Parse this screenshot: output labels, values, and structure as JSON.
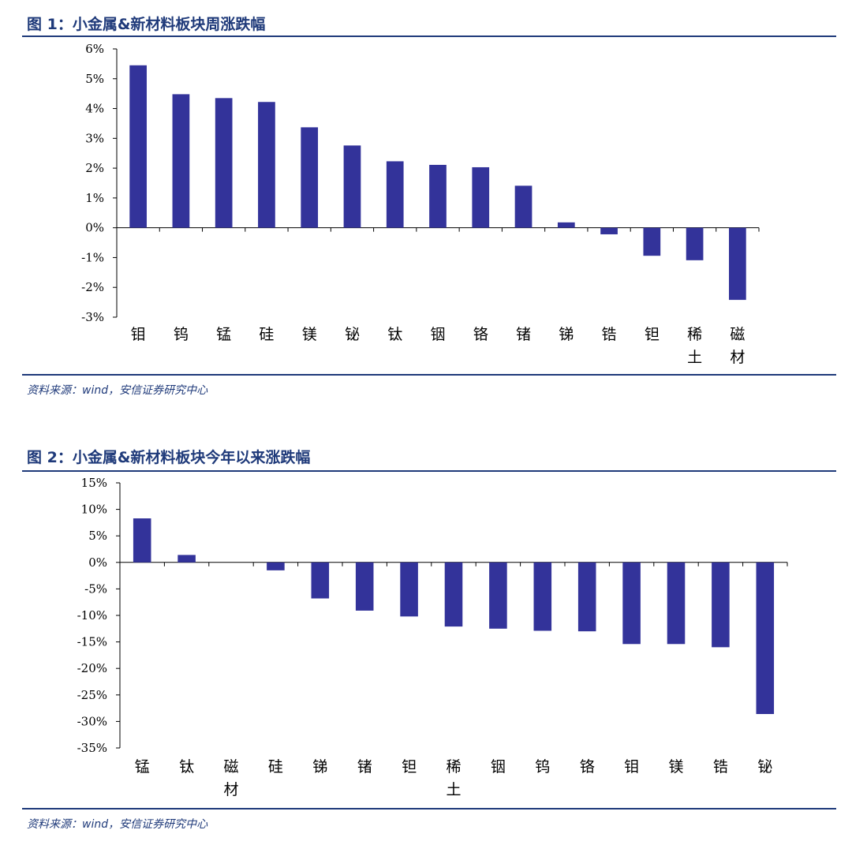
{
  "figures": [
    {
      "title": "图 1：小金属&新材料板块周涨跌幅",
      "source": "资料来源：wind，安信证券研究中心",
      "chart_data": {
        "type": "bar",
        "title": "图 1：小金属&新材料板块周涨跌幅",
        "categories": [
          "钼",
          "钨",
          "锰",
          "硅",
          "镁",
          "铋",
          "钛",
          "铟",
          "铬",
          "锗",
          "锑",
          "锆",
          "钽",
          "稀土",
          "磁材"
        ],
        "values": [
          5.45,
          4.48,
          4.35,
          4.22,
          3.37,
          2.76,
          2.23,
          2.11,
          2.03,
          1.41,
          0.18,
          -0.22,
          -0.94,
          -1.09,
          -2.42
        ],
        "unit": "%",
        "ylim": [
          -3,
          6
        ],
        "ytick_step": 1,
        "yticks": [
          "6%",
          "5%",
          "4%",
          "3%",
          "2%",
          "1%",
          "0%",
          "-1%",
          "-2%",
          "-3%"
        ],
        "bar_color": "#33339a",
        "grid": false,
        "legend": "none"
      }
    },
    {
      "title": "图 2：小金属&新材料板块今年以来涨跌幅",
      "source": "资料来源：wind，安信证券研究中心",
      "chart_data": {
        "type": "bar",
        "title": "图 2：小金属&新材料板块今年以来涨跌幅",
        "categories": [
          "锰",
          "钛",
          "磁材",
          "硅",
          "锑",
          "锗",
          "钽",
          "稀土",
          "铟",
          "钨",
          "铬",
          "钼",
          "镁",
          "锆",
          "铋"
        ],
        "values": [
          8.3,
          1.4,
          0.0,
          -1.5,
          -6.8,
          -9.1,
          -10.2,
          -12.1,
          -12.5,
          -12.9,
          -13.0,
          -15.4,
          -15.4,
          -16.0,
          -28.6
        ],
        "unit": "%",
        "ylim": [
          -35,
          15
        ],
        "ytick_step": 5,
        "yticks": [
          "15%",
          "10%",
          "5%",
          "0%",
          "-5%",
          "-10%",
          "-15%",
          "-20%",
          "-25%",
          "-30%",
          "-35%"
        ],
        "bar_color": "#33339a",
        "grid": false,
        "legend": "none"
      }
    }
  ]
}
